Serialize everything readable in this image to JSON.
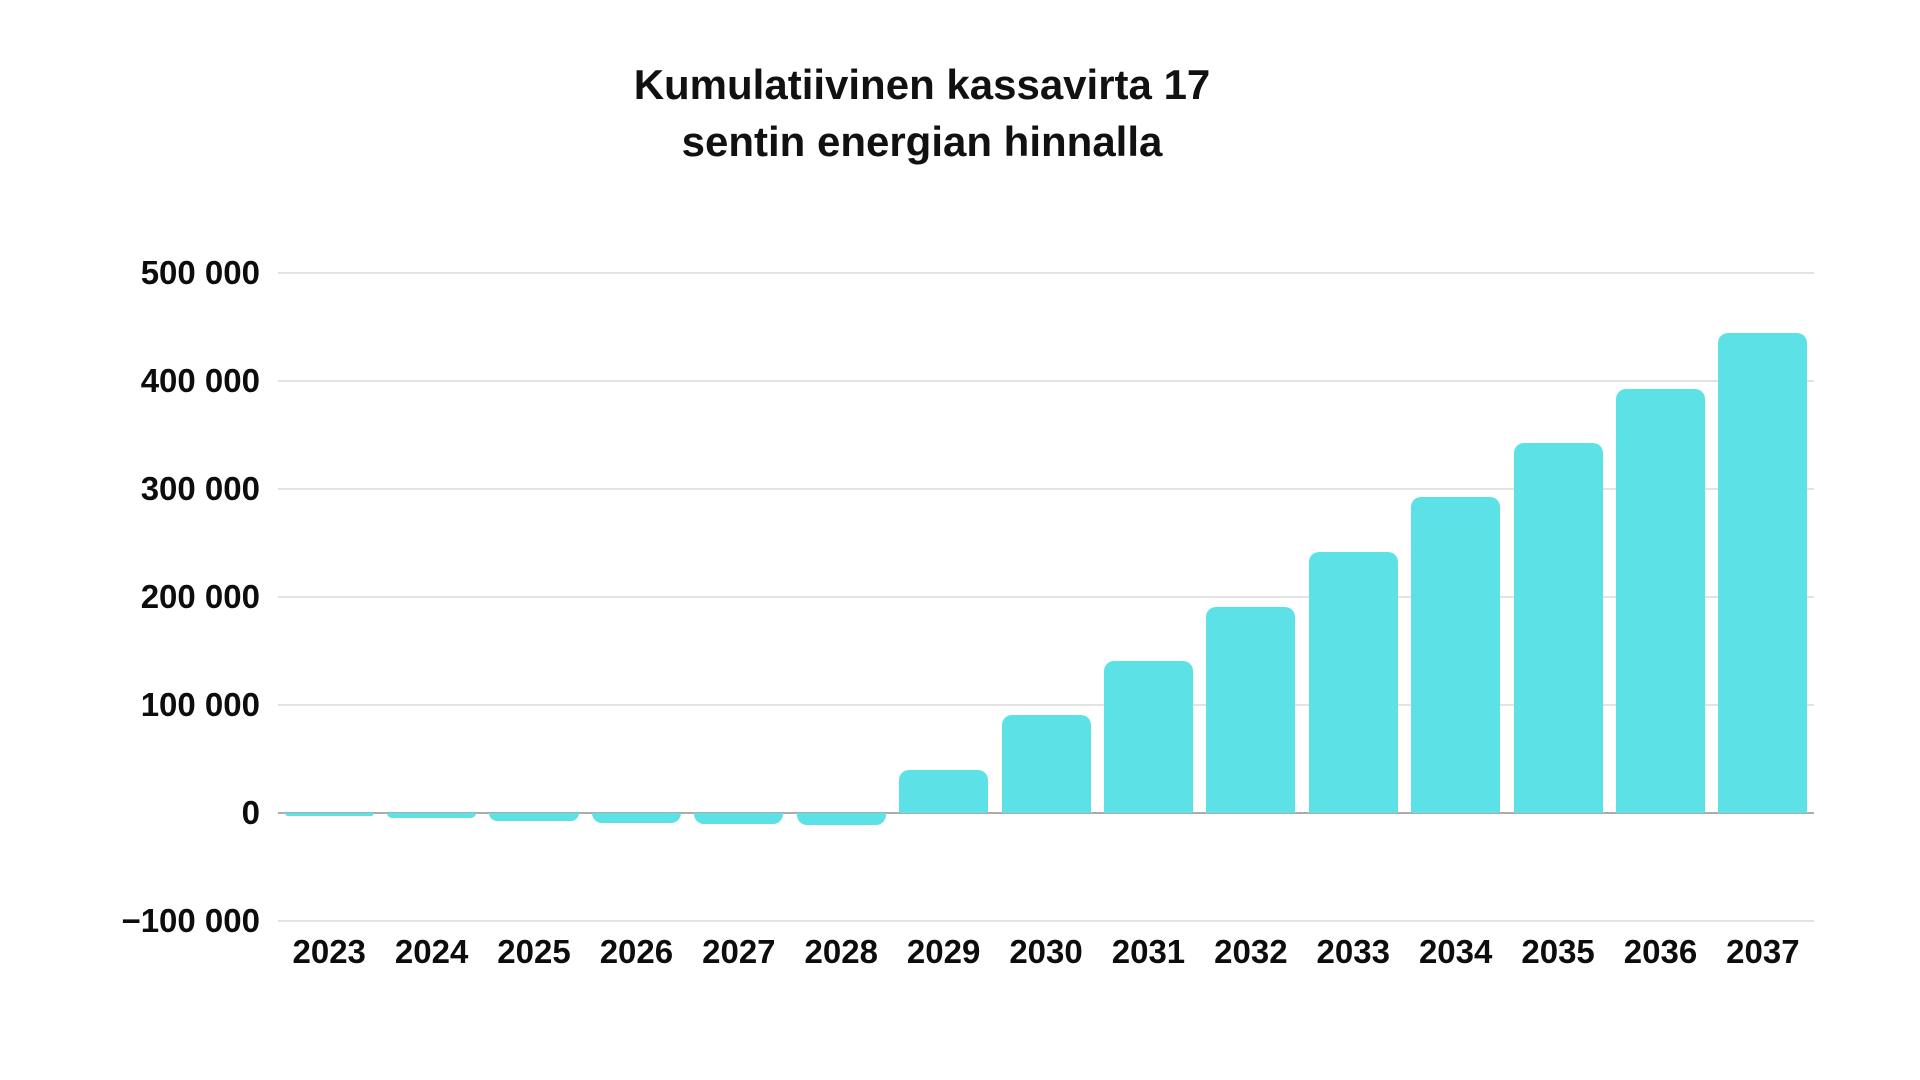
{
  "title": {
    "line1": "Kumulatiivinen kassavirta 17",
    "line2": "sentin energian hinnalla"
  },
  "chart_data": {
    "type": "bar",
    "title": "Kumulatiivinen kassavirta 17 sentin energian hinnalla",
    "xlabel": "",
    "ylabel": "",
    "categories": [
      "2023",
      "2024",
      "2025",
      "2026",
      "2027",
      "2028",
      "2029",
      "2030",
      "2031",
      "2032",
      "2033",
      "2034",
      "2035",
      "2036",
      "2037"
    ],
    "values": [
      -3000,
      -5000,
      -7500,
      -9000,
      -10000,
      -11500,
      40000,
      90500,
      141000,
      191000,
      242000,
      292500,
      343000,
      393000,
      444000
    ],
    "ylim": [
      -100000,
      500000
    ],
    "y_ticks": [
      {
        "label": "500 000",
        "value": 500000
      },
      {
        "label": "400 000",
        "value": 400000
      },
      {
        "label": "300 000",
        "value": 300000
      },
      {
        "label": "200 000",
        "value": 200000
      },
      {
        "label": "100 000",
        "value": 100000
      },
      {
        "label": "0",
        "value": 0
      },
      {
        "label": "−100 000",
        "value": -100000
      }
    ],
    "grid": "horizontal",
    "legend": "none",
    "bar_color": "#5CE1E6",
    "gridline_color": "#E3E3E3",
    "zero_line_color": "#ACACAC",
    "text_color": "#0D0D0D"
  }
}
